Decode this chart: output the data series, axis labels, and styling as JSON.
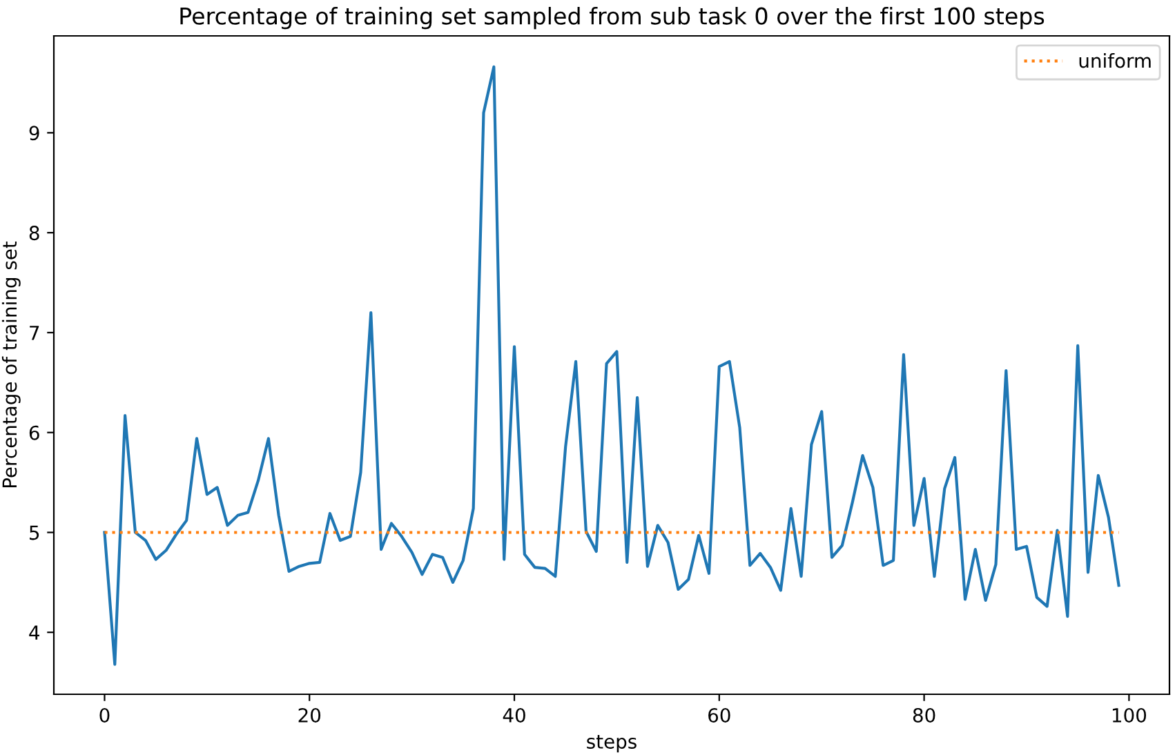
{
  "chart_data": {
    "type": "line",
    "title": "Percentage of training set sampled from sub task 0 over the first 100 steps",
    "xlabel": "steps",
    "ylabel": "Percentage of training set",
    "x": [
      0,
      1,
      2,
      3,
      4,
      5,
      6,
      7,
      8,
      9,
      10,
      11,
      12,
      13,
      14,
      15,
      16,
      17,
      18,
      19,
      20,
      21,
      22,
      23,
      24,
      25,
      26,
      27,
      28,
      29,
      30,
      31,
      32,
      33,
      34,
      35,
      36,
      37,
      38,
      39,
      40,
      41,
      42,
      43,
      44,
      45,
      46,
      47,
      48,
      49,
      50,
      51,
      52,
      53,
      54,
      55,
      56,
      57,
      58,
      59,
      60,
      61,
      62,
      63,
      64,
      65,
      66,
      67,
      68,
      69,
      70,
      71,
      72,
      73,
      74,
      75,
      76,
      77,
      78,
      79,
      80,
      81,
      82,
      83,
      84,
      85,
      86,
      87,
      88,
      89,
      90,
      91,
      92,
      93,
      94,
      95,
      96,
      97,
      98,
      99
    ],
    "series": [
      {
        "color": "#1f77b4",
        "line_style": "solid",
        "values": [
          5.0,
          3.68,
          6.17,
          5.0,
          4.92,
          4.73,
          4.82,
          4.98,
          5.12,
          5.94,
          5.38,
          5.45,
          5.07,
          5.17,
          5.2,
          5.52,
          5.94,
          5.17,
          4.61,
          4.66,
          4.69,
          4.7,
          5.19,
          4.92,
          4.96,
          5.6,
          7.2,
          4.83,
          5.09,
          4.96,
          4.8,
          4.58,
          4.78,
          4.75,
          4.5,
          4.72,
          5.24,
          9.2,
          9.66,
          4.73,
          6.86,
          4.78,
          4.65,
          4.64,
          4.56,
          5.86,
          6.71,
          5.01,
          4.81,
          6.69,
          6.81,
          4.7,
          6.35,
          4.66,
          5.07,
          4.9,
          4.43,
          4.53,
          4.97,
          4.59,
          6.66,
          6.71,
          6.05,
          4.67,
          4.79,
          4.65,
          4.42,
          5.24,
          4.56,
          5.88,
          6.21,
          4.75,
          4.87,
          5.3,
          5.77,
          5.45,
          4.67,
          4.72,
          6.78,
          5.07,
          5.54,
          4.56,
          5.44,
          5.75,
          4.33,
          4.83,
          4.32,
          4.68,
          6.62,
          4.83,
          4.86,
          4.35,
          4.26,
          5.02,
          4.16,
          6.87,
          4.6,
          5.57,
          5.15,
          4.47
        ]
      },
      {
        "name": "uniform",
        "color": "#ff7f0e",
        "line_style": "dotted",
        "x": [
          0,
          99
        ],
        "values": [
          5,
          5
        ]
      }
    ],
    "xlim": [
      -4.95,
      103.95
    ],
    "ylim": [
      3.38,
      9.97
    ],
    "xticks": [
      0,
      20,
      40,
      60,
      80,
      100
    ],
    "yticks": [
      4,
      5,
      6,
      7,
      8,
      9
    ],
    "legend": "top right",
    "grid": false,
    "marker": "none"
  }
}
